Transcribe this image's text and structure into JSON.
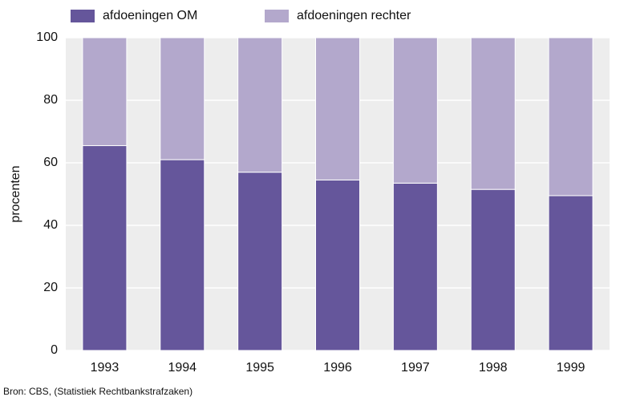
{
  "chart_data": {
    "type": "stacked_bar",
    "categories": [
      "1993",
      "1994",
      "1995",
      "1996",
      "1997",
      "1998",
      "1999"
    ],
    "series": [
      {
        "name": "afdoeningen OM",
        "color": "#65569b",
        "values": [
          65.5,
          61,
          57,
          54.5,
          53.5,
          51.5,
          49.5
        ]
      },
      {
        "name": "afdoeningen rechter",
        "color": "#b3a8cc",
        "values": [
          34.5,
          39,
          43,
          45.5,
          46.5,
          48.5,
          50.5
        ]
      }
    ],
    "ylabel": "procenten",
    "ylim": [
      0,
      100
    ],
    "yticks": [
      0,
      20,
      40,
      60,
      80,
      100
    ],
    "grid": true,
    "source": "Bron: CBS, (Statistiek Rechtbankstrafzaken)"
  }
}
